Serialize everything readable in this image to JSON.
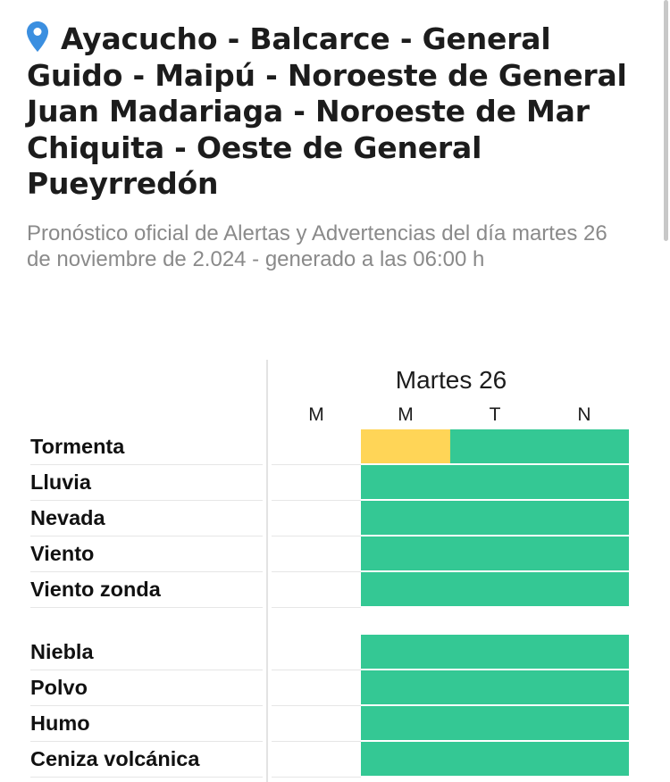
{
  "header": {
    "title": "Ayacucho - Balcarce - General Guido - Maipú - Noroeste de General Juan Madariaga - Noroeste de Mar Chiquita - Oeste de General Pueyrredón",
    "subtitle": "Pronóstico oficial de Alertas y Advertencias del día martes 26 de noviembre de 2.024 - generado a las 06:00 h"
  },
  "table": {
    "day": "Martes 26",
    "periods": [
      "M",
      "M",
      "T",
      "N"
    ],
    "colors": {
      "green": "#34c894",
      "yellow": "#ffd557"
    },
    "rows": [
      {
        "label": "Tormenta",
        "levels": [
          "none",
          "yellow",
          "green",
          "green"
        ]
      },
      {
        "label": "Lluvia",
        "levels": [
          "none",
          "green",
          "green",
          "green"
        ]
      },
      {
        "label": "Nevada",
        "levels": [
          "none",
          "green",
          "green",
          "green"
        ]
      },
      {
        "label": "Viento",
        "levels": [
          "none",
          "green",
          "green",
          "green"
        ]
      },
      {
        "label": "Viento zonda",
        "levels": [
          "none",
          "green",
          "green",
          "green"
        ]
      },
      {
        "label": "Niebla",
        "levels": [
          "none",
          "green",
          "green",
          "green"
        ]
      },
      {
        "label": "Polvo",
        "levels": [
          "none",
          "green",
          "green",
          "green"
        ]
      },
      {
        "label": "Humo",
        "levels": [
          "none",
          "green",
          "green",
          "green"
        ]
      },
      {
        "label": "Ceniza volcánica",
        "levels": [
          "none",
          "green",
          "green",
          "green"
        ]
      }
    ]
  }
}
